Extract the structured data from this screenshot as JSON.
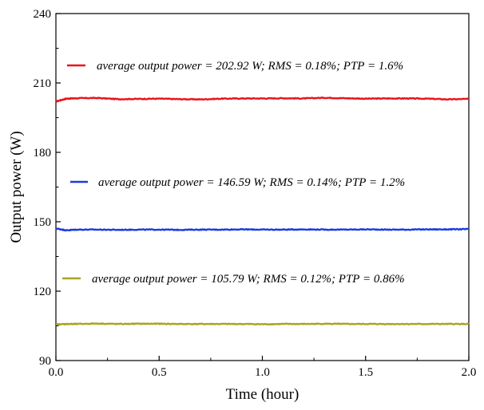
{
  "chart_data": {
    "type": "line",
    "xlabel": "Time (hour)",
    "ylabel": "Output power (W)",
    "xlim": [
      0.0,
      2.0
    ],
    "ylim": [
      90,
      240
    ],
    "xticks": [
      0.0,
      0.5,
      1.0,
      1.5,
      2.0
    ],
    "xtick_labels": [
      "0.0",
      "0.5",
      "1.0",
      "1.5",
      "2.0"
    ],
    "yticks": [
      90,
      120,
      150,
      180,
      210,
      240
    ],
    "ytick_labels": [
      "90",
      "120",
      "150",
      "180",
      "210",
      "240"
    ],
    "grid": false,
    "legend_placement": "inline-above-each-series",
    "series": [
      {
        "name": "average output power = 202.92 W; RMS = 0.18%; PTP = 1.6%",
        "color": "#e8141c",
        "x": [
          0.0,
          0.05,
          0.1,
          0.2,
          0.3,
          0.4,
          0.5,
          0.6,
          0.7,
          0.8,
          0.9,
          1.0,
          1.1,
          1.2,
          1.3,
          1.4,
          1.5,
          1.6,
          1.7,
          1.8,
          1.9,
          2.0
        ],
        "values": [
          202.0,
          203.2,
          203.4,
          203.5,
          203.0,
          203.1,
          203.2,
          203.0,
          202.9,
          203.2,
          203.3,
          203.3,
          203.4,
          203.3,
          203.6,
          203.4,
          203.2,
          203.3,
          203.3,
          203.2,
          202.9,
          203.1
        ]
      },
      {
        "name": "average output power = 146.59 W; RMS = 0.14%; PTP = 1.2%",
        "color": "#1a3be0",
        "x": [
          0.0,
          0.05,
          0.1,
          0.2,
          0.3,
          0.4,
          0.5,
          0.6,
          0.7,
          0.8,
          0.9,
          1.0,
          1.1,
          1.2,
          1.3,
          1.4,
          1.5,
          1.6,
          1.7,
          1.8,
          1.9,
          2.0
        ],
        "values": [
          147.1,
          146.3,
          146.6,
          146.6,
          146.5,
          146.6,
          146.6,
          146.5,
          146.6,
          146.6,
          146.7,
          146.6,
          146.6,
          146.7,
          146.6,
          146.6,
          146.7,
          146.6,
          146.6,
          146.7,
          146.7,
          146.8
        ]
      },
      {
        "name": "average output power = 105.79 W; RMS = 0.12%; PTP = 0.86%",
        "color": "#a8a420",
        "x": [
          0.0,
          0.05,
          0.1,
          0.2,
          0.3,
          0.4,
          0.5,
          0.6,
          0.7,
          0.8,
          0.9,
          1.0,
          1.1,
          1.2,
          1.3,
          1.4,
          1.5,
          1.6,
          1.7,
          1.8,
          1.9,
          2.0
        ],
        "values": [
          105.6,
          105.8,
          105.8,
          106.0,
          105.8,
          105.9,
          105.9,
          105.8,
          105.8,
          105.8,
          105.8,
          105.7,
          105.8,
          105.8,
          105.9,
          105.8,
          105.8,
          105.8,
          105.8,
          105.8,
          105.8,
          105.8
        ]
      }
    ]
  }
}
